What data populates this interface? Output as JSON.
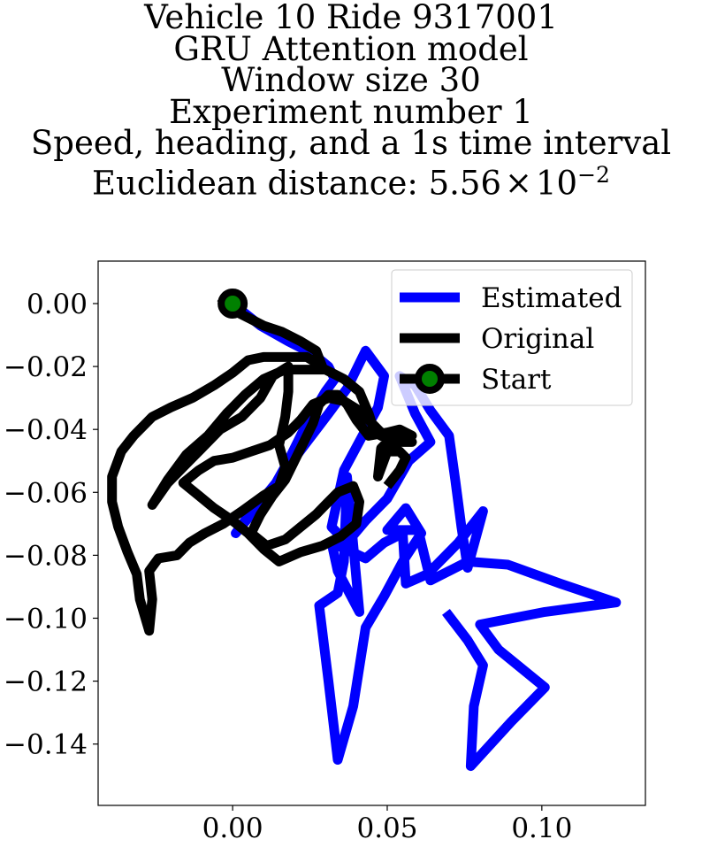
{
  "chart_data": {
    "type": "line",
    "title_lines": [
      "Vehicle 10 Ride 9317001",
      "GRU Attention model",
      "Window size 30",
      "Experiment number 1",
      "Speed, heading, and a 1s time interval"
    ],
    "title_metric_label": "Euclidean distance: ",
    "title_metric_mantissa": "5.56",
    "title_metric_times": "×",
    "title_metric_base": "10",
    "title_metric_exponent": "−2",
    "xlim": [
      -0.0435,
      0.1335
    ],
    "ylim": [
      -0.1595,
      0.0135
    ],
    "x_ticks": [
      {
        "value": 0.0,
        "label": "0.00"
      },
      {
        "value": 0.05,
        "label": "0.05"
      },
      {
        "value": 0.1,
        "label": "0.10"
      }
    ],
    "y_ticks": [
      {
        "value": 0.0,
        "label": "0.00"
      },
      {
        "value": -0.02,
        "label": "−0.02"
      },
      {
        "value": -0.04,
        "label": "−0.04"
      },
      {
        "value": -0.06,
        "label": "−0.06"
      },
      {
        "value": -0.08,
        "label": "−0.08"
      },
      {
        "value": -0.1,
        "label": "−0.10"
      },
      {
        "value": -0.12,
        "label": "−0.12"
      },
      {
        "value": -0.14,
        "label": "−0.14"
      }
    ],
    "grid": false,
    "legend_position": "top-right",
    "series": [
      {
        "name": "Estimated",
        "color": "#0000ff",
        "points": [
          [
            0.0,
            0.0
          ],
          [
            0.009,
            -0.007
          ],
          [
            0.018,
            -0.012
          ],
          [
            0.026,
            -0.016
          ],
          [
            0.031,
            -0.02
          ],
          [
            0.033,
            -0.024
          ],
          [
            0.03,
            -0.028
          ],
          [
            0.027,
            -0.033
          ],
          [
            0.024,
            -0.038
          ],
          [
            0.021,
            -0.044
          ],
          [
            0.018,
            -0.05
          ],
          [
            0.014,
            -0.057
          ],
          [
            0.009,
            -0.063
          ],
          [
            0.004,
            -0.069
          ],
          [
            0.001,
            -0.073
          ],
          [
            0.006,
            -0.067
          ],
          [
            0.014,
            -0.057
          ],
          [
            0.024,
            -0.044
          ],
          [
            0.031,
            -0.035
          ],
          [
            0.037,
            -0.027
          ],
          [
            0.043,
            -0.015
          ],
          [
            0.049,
            -0.023
          ],
          [
            0.047,
            -0.033
          ],
          [
            0.042,
            -0.042
          ],
          [
            0.036,
            -0.053
          ],
          [
            0.034,
            -0.062
          ],
          [
            0.032,
            -0.071
          ],
          [
            0.037,
            -0.076
          ],
          [
            0.043,
            -0.069
          ],
          [
            0.05,
            -0.062
          ],
          [
            0.057,
            -0.05
          ],
          [
            0.064,
            -0.044
          ],
          [
            0.059,
            -0.035
          ],
          [
            0.054,
            -0.023
          ],
          [
            0.059,
            -0.026
          ],
          [
            0.064,
            -0.034
          ],
          [
            0.07,
            -0.042
          ],
          [
            0.072,
            -0.056
          ],
          [
            0.074,
            -0.071
          ],
          [
            0.076,
            -0.084
          ],
          [
            0.081,
            -0.066
          ],
          [
            0.073,
            -0.076
          ],
          [
            0.063,
            -0.086
          ],
          [
            0.056,
            -0.089
          ],
          [
            0.055,
            -0.073
          ],
          [
            0.049,
            -0.076
          ],
          [
            0.043,
            -0.081
          ],
          [
            0.032,
            -0.076
          ],
          [
            0.034,
            -0.085
          ],
          [
            0.041,
            -0.098
          ],
          [
            0.037,
            -0.055
          ],
          [
            0.036,
            -0.082
          ],
          [
            0.034,
            -0.092
          ],
          [
            0.028,
            -0.096
          ],
          [
            0.031,
            -0.12
          ],
          [
            0.034,
            -0.145
          ],
          [
            0.039,
            -0.128
          ],
          [
            0.043,
            -0.103
          ],
          [
            0.049,
            -0.093
          ],
          [
            0.055,
            -0.082
          ],
          [
            0.061,
            -0.073
          ],
          [
            0.056,
            -0.065
          ],
          [
            0.05,
            -0.072
          ],
          [
            0.06,
            -0.072
          ],
          [
            0.064,
            -0.088
          ],
          [
            0.07,
            -0.085
          ],
          [
            0.076,
            -0.082
          ],
          [
            0.089,
            -0.083
          ],
          [
            0.106,
            -0.089
          ],
          [
            0.124,
            -0.095
          ],
          [
            0.101,
            -0.098
          ],
          [
            0.08,
            -0.102
          ],
          [
            0.086,
            -0.11
          ],
          [
            0.101,
            -0.122
          ],
          [
            0.09,
            -0.133
          ],
          [
            0.077,
            -0.147
          ],
          [
            0.078,
            -0.128
          ],
          [
            0.081,
            -0.115
          ],
          [
            0.076,
            -0.107
          ],
          [
            0.069,
            -0.098
          ]
        ]
      },
      {
        "name": "Original",
        "color": "#000000",
        "points": [
          [
            -0.004,
            0.002
          ],
          [
            0.002,
            -0.003
          ],
          [
            0.01,
            -0.007
          ],
          [
            0.016,
            -0.009
          ],
          [
            0.022,
            -0.012
          ],
          [
            0.027,
            -0.015
          ],
          [
            0.029,
            -0.02
          ],
          [
            0.024,
            -0.017
          ],
          [
            0.018,
            -0.017
          ],
          [
            0.01,
            -0.017
          ],
          [
            0.005,
            -0.018
          ],
          [
            0.0,
            -0.022
          ],
          [
            -0.006,
            -0.026
          ],
          [
            -0.013,
            -0.03
          ],
          [
            -0.02,
            -0.033
          ],
          [
            -0.026,
            -0.036
          ],
          [
            -0.032,
            -0.042
          ],
          [
            -0.036,
            -0.047
          ],
          [
            -0.039,
            -0.055
          ],
          [
            -0.039,
            -0.063
          ],
          [
            -0.037,
            -0.071
          ],
          [
            -0.034,
            -0.079
          ],
          [
            -0.031,
            -0.086
          ],
          [
            -0.03,
            -0.094
          ],
          [
            -0.027,
            -0.104
          ],
          [
            -0.026,
            -0.094
          ],
          [
            -0.027,
            -0.085
          ],
          [
            -0.024,
            -0.081
          ],
          [
            -0.018,
            -0.08
          ],
          [
            -0.014,
            -0.076
          ],
          [
            -0.009,
            -0.073
          ],
          [
            -0.003,
            -0.07
          ],
          [
            0.003,
            -0.066
          ],
          [
            0.01,
            -0.061
          ],
          [
            0.015,
            -0.058
          ],
          [
            0.017,
            -0.052
          ],
          [
            0.015,
            -0.045
          ],
          [
            0.017,
            -0.036
          ],
          [
            0.018,
            -0.028
          ],
          [
            0.018,
            -0.02
          ],
          [
            0.013,
            -0.023
          ],
          [
            0.009,
            -0.03
          ],
          [
            0.003,
            -0.036
          ],
          [
            -0.004,
            -0.04
          ],
          [
            -0.01,
            -0.046
          ],
          [
            -0.016,
            -0.052
          ],
          [
            -0.021,
            -0.057
          ],
          [
            -0.026,
            -0.064
          ],
          [
            -0.021,
            -0.056
          ],
          [
            -0.015,
            -0.048
          ],
          [
            -0.008,
            -0.042
          ],
          [
            -0.002,
            -0.035
          ],
          [
            0.004,
            -0.029
          ],
          [
            0.01,
            -0.024
          ],
          [
            0.017,
            -0.021
          ],
          [
            0.024,
            -0.021
          ],
          [
            0.03,
            -0.021
          ],
          [
            0.036,
            -0.024
          ],
          [
            0.041,
            -0.028
          ],
          [
            0.044,
            -0.035
          ],
          [
            0.046,
            -0.041
          ],
          [
            0.05,
            -0.043
          ],
          [
            0.054,
            -0.043
          ],
          [
            0.058,
            -0.044
          ],
          [
            0.051,
            -0.044
          ],
          [
            0.046,
            -0.039
          ],
          [
            0.041,
            -0.034
          ],
          [
            0.036,
            -0.031
          ],
          [
            0.031,
            -0.03
          ],
          [
            0.026,
            -0.032
          ],
          [
            0.022,
            -0.037
          ],
          [
            0.018,
            -0.041
          ],
          [
            0.012,
            -0.045
          ],
          [
            0.006,
            -0.047
          ],
          [
            0.0,
            -0.049
          ],
          [
            -0.006,
            -0.05
          ],
          [
            -0.011,
            -0.053
          ],
          [
            -0.016,
            -0.057
          ],
          [
            -0.011,
            -0.061
          ],
          [
            -0.006,
            -0.065
          ],
          [
            0.0,
            -0.069
          ],
          [
            0.005,
            -0.073
          ],
          [
            0.01,
            -0.078
          ],
          [
            0.015,
            -0.082
          ],
          [
            0.022,
            -0.079
          ],
          [
            0.029,
            -0.077
          ],
          [
            0.035,
            -0.074
          ],
          [
            0.04,
            -0.07
          ],
          [
            0.041,
            -0.063
          ],
          [
            0.039,
            -0.058
          ],
          [
            0.034,
            -0.06
          ],
          [
            0.03,
            -0.064
          ],
          [
            0.027,
            -0.067
          ],
          [
            0.022,
            -0.071
          ],
          [
            0.017,
            -0.075
          ],
          [
            0.011,
            -0.077
          ],
          [
            0.006,
            -0.073
          ],
          [
            0.009,
            -0.067
          ],
          [
            0.013,
            -0.061
          ],
          [
            0.017,
            -0.056
          ],
          [
            0.02,
            -0.05
          ],
          [
            0.023,
            -0.044
          ],
          [
            0.026,
            -0.038
          ],
          [
            0.028,
            -0.032
          ],
          [
            0.031,
            -0.029
          ],
          [
            0.034,
            -0.029
          ],
          [
            0.037,
            -0.032
          ],
          [
            0.04,
            -0.037
          ],
          [
            0.044,
            -0.042
          ],
          [
            0.05,
            -0.041
          ],
          [
            0.054,
            -0.04
          ],
          [
            0.058,
            -0.042
          ],
          [
            0.052,
            -0.042
          ],
          [
            0.048,
            -0.046
          ],
          [
            0.047,
            -0.055
          ],
          [
            0.05,
            -0.047
          ],
          [
            0.054,
            -0.047
          ],
          [
            0.056,
            -0.049
          ],
          [
            0.054,
            -0.053
          ],
          [
            0.05,
            -0.058
          ]
        ]
      }
    ],
    "start_point": {
      "name": "Start",
      "x": 0.0,
      "y": 0.0,
      "marker_fill": "#008000",
      "marker_edge": "#000000"
    }
  }
}
